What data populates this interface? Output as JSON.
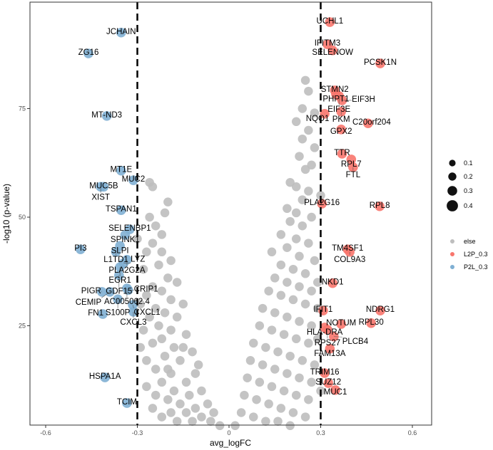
{
  "chart_data": {
    "type": "scatter",
    "xlabel": "avg_logFC",
    "ylabel": "-log10 (p-value)",
    "xlim": [
      -0.64,
      0.66
    ],
    "ylim": [
      0,
      97
    ],
    "x_ticks": [
      -0.6,
      -0.3,
      0,
      0.3,
      0.6
    ],
    "x_tick_labels": [
      "-0.6",
      "-0.3",
      "0",
      "0.3",
      "0.6"
    ],
    "y_ticks": [
      25,
      50,
      75
    ],
    "y_tick_labels": [
      "25",
      "50",
      "75"
    ],
    "threshold_lines_x": [
      -0.3,
      0.3
    ],
    "grid": false,
    "legend_position": "right",
    "size_legend": {
      "values": [
        0.1,
        0.2,
        0.3,
        0.4
      ],
      "labels": [
        "0.1",
        "0.2",
        "0.3",
        "0.4"
      ]
    },
    "color_legend": [
      {
        "name": "else",
        "color": "#bebebe"
      },
      {
        "name": "L2P_0.3",
        "color": "#f8766d"
      },
      {
        "name": "P2L_0.3",
        "color": "#7fafd3"
      }
    ],
    "series": [
      {
        "name": "else",
        "color": "#bebebe",
        "size": 0.25,
        "points": [
          [
            -0.26,
            58
          ],
          [
            -0.25,
            57
          ],
          [
            -0.2,
            53.5
          ],
          [
            -0.21,
            51
          ],
          [
            -0.26,
            50
          ],
          [
            -0.24,
            48
          ],
          [
            -0.22,
            46
          ],
          [
            -0.25,
            44
          ],
          [
            -0.27,
            42
          ],
          [
            -0.22,
            42
          ],
          [
            -0.19,
            40
          ],
          [
            -0.23,
            39
          ],
          [
            -0.28,
            38
          ],
          [
            -0.2,
            36
          ],
          [
            -0.17,
            35
          ],
          [
            -0.25,
            34
          ],
          [
            -0.22,
            33
          ],
          [
            -0.27,
            32
          ],
          [
            -0.19,
            31
          ],
          [
            -0.15,
            30
          ],
          [
            -0.24,
            29
          ],
          [
            -0.21,
            28
          ],
          [
            -0.26,
            27
          ],
          [
            -0.17,
            27
          ],
          [
            -0.23,
            25
          ],
          [
            -0.19,
            24
          ],
          [
            -0.28,
            24
          ],
          [
            -0.14,
            23
          ],
          [
            -0.22,
            22
          ],
          [
            -0.25,
            21
          ],
          [
            -0.18,
            20
          ],
          [
            -0.12,
            19
          ],
          [
            -0.21,
            18
          ],
          [
            -0.27,
            17
          ],
          [
            -0.16,
            17
          ],
          [
            -0.24,
            15
          ],
          [
            -0.19,
            14
          ],
          [
            -0.11,
            14
          ],
          [
            -0.22,
            12
          ],
          [
            -0.14,
            12
          ],
          [
            -0.27,
            11
          ],
          [
            -0.18,
            10
          ],
          [
            -0.09,
            10
          ],
          [
            -0.24,
            9
          ],
          [
            -0.13,
            9
          ],
          [
            -0.2,
            8
          ],
          [
            -0.16,
            7
          ],
          [
            -0.07,
            7
          ],
          [
            -0.25,
            6
          ],
          [
            -0.11,
            6
          ],
          [
            -0.19,
            5
          ],
          [
            -0.14,
            5
          ],
          [
            -0.05,
            5
          ],
          [
            -0.22,
            4
          ],
          [
            -0.09,
            4
          ],
          [
            -0.17,
            3
          ],
          [
            -0.12,
            3
          ],
          [
            -0.06,
            3
          ],
          [
            -0.03,
            2
          ],
          [
            -0.29,
            20
          ],
          [
            -0.29,
            30
          ],
          [
            -0.3,
            45
          ],
          [
            -0.2,
            15
          ],
          [
            -0.15,
            20
          ],
          [
            -0.1,
            16
          ],
          [
            0.25,
            81.5
          ],
          [
            0.26,
            79
          ],
          [
            0.24,
            75
          ],
          [
            0.28,
            74
          ],
          [
            0.22,
            72
          ],
          [
            0.26,
            70
          ],
          [
            0.24,
            68
          ],
          [
            0.28,
            66
          ],
          [
            0.23,
            64
          ],
          [
            0.27,
            62
          ],
          [
            0.25,
            61
          ],
          [
            0.2,
            58
          ],
          [
            0.22,
            57
          ],
          [
            0.26,
            56
          ],
          [
            0.24,
            54
          ],
          [
            0.19,
            52
          ],
          [
            0.22,
            51
          ],
          [
            0.27,
            50
          ],
          [
            0.2,
            49
          ],
          [
            0.24,
            48
          ],
          [
            0.17,
            46
          ],
          [
            0.22,
            45
          ],
          [
            0.26,
            44
          ],
          [
            0.19,
            43
          ],
          [
            0.14,
            42
          ],
          [
            0.23,
            41
          ],
          [
            0.28,
            40
          ],
          [
            0.17,
            39
          ],
          [
            0.21,
            38
          ],
          [
            0.25,
            37
          ],
          [
            0.15,
            36
          ],
          [
            0.19,
            35
          ],
          [
            0.23,
            34
          ],
          [
            0.27,
            33
          ],
          [
            0.13,
            33
          ],
          [
            0.17,
            32
          ],
          [
            0.21,
            31
          ],
          [
            0.25,
            30
          ],
          [
            0.29,
            29
          ],
          [
            0.11,
            29
          ],
          [
            0.15,
            28
          ],
          [
            0.19,
            27
          ],
          [
            0.23,
            26
          ],
          [
            0.27,
            25
          ],
          [
            0.1,
            25
          ],
          [
            0.14,
            24
          ],
          [
            0.18,
            23
          ],
          [
            0.22,
            22
          ],
          [
            0.26,
            21
          ],
          [
            0.08,
            21
          ],
          [
            0.12,
            20
          ],
          [
            0.16,
            19
          ],
          [
            0.2,
            18
          ],
          [
            0.24,
            17
          ],
          [
            0.28,
            16
          ],
          [
            0.07,
            17
          ],
          [
            0.11,
            16
          ],
          [
            0.15,
            15
          ],
          [
            0.19,
            14
          ],
          [
            0.23,
            13
          ],
          [
            0.27,
            12
          ],
          [
            0.06,
            13
          ],
          [
            0.1,
            12
          ],
          [
            0.14,
            11
          ],
          [
            0.18,
            10
          ],
          [
            0.22,
            9
          ],
          [
            0.26,
            8
          ],
          [
            0.05,
            9
          ],
          [
            0.09,
            8
          ],
          [
            0.13,
            7
          ],
          [
            0.17,
            6
          ],
          [
            0.21,
            5
          ],
          [
            0.25,
            4
          ],
          [
            0.04,
            5
          ],
          [
            0.08,
            4
          ],
          [
            0.12,
            3
          ],
          [
            0.16,
            3
          ],
          [
            0.2,
            2
          ],
          [
            0.02,
            2
          ],
          [
            0.29,
            35
          ],
          [
            0.3,
            55
          ],
          [
            0.29,
            22
          ],
          [
            0.3,
            10
          ]
        ]
      },
      {
        "name": "P2L_0.3",
        "color": "#7fafd3",
        "size": 0.3,
        "points": [
          {
            "gene": "JCHAIN",
            "x": -0.353,
            "y": 92.5
          },
          {
            "gene": "ZG16",
            "x": -0.46,
            "y": 87.7
          },
          {
            "gene": "MT-ND3",
            "x": -0.4,
            "y": 73.3
          },
          {
            "gene": "MT1E",
            "x": -0.353,
            "y": 60.7
          },
          {
            "gene": "MUC2",
            "x": -0.313,
            "y": 58.5
          },
          {
            "gene": "MUC5B",
            "x": -0.41,
            "y": 57.0
          },
          {
            "gene": "XIST",
            "x": -0.42,
            "y": 57.0
          },
          {
            "gene": "TSPAN1",
            "x": -0.353,
            "y": 51.6
          },
          {
            "gene": "SELENBP1",
            "x": -0.325,
            "y": 47.2
          },
          {
            "gene": "SPINK1",
            "x": -0.34,
            "y": 45.9
          },
          {
            "gene": "PI3",
            "x": -0.486,
            "y": 42.6
          },
          {
            "gene": "SLPI",
            "x": -0.357,
            "y": 43.4
          },
          {
            "gene": "L1TD1",
            "x": -0.37,
            "y": 42.0
          },
          {
            "gene": "PLA2G2A",
            "x": -0.334,
            "y": 40.2
          },
          {
            "gene": "LYZ",
            "x": -0.345,
            "y": 39.4
          },
          {
            "gene": "EGR1",
            "x": -0.357,
            "y": 38.5
          },
          {
            "gene": "GDF15",
            "x": -0.36,
            "y": 36.6
          },
          {
            "gene": "AC005062.4",
            "x": -0.334,
            "y": 33.6
          },
          {
            "gene": "CRIP1",
            "x": -0.33,
            "y": 33.2
          },
          {
            "gene": "PIGR",
            "x": -0.416,
            "y": 32.8
          },
          {
            "gene": "CEMIP",
            "x": -0.39,
            "y": 32.8
          },
          {
            "gene": "S100P",
            "x": -0.364,
            "y": 31.1
          },
          {
            "gene": "CXCL1",
            "x": -0.315,
            "y": 29.8
          },
          {
            "gene": "CXCL3",
            "x": -0.313,
            "y": 28.2
          },
          {
            "gene": "FN1",
            "x": -0.413,
            "y": 27.7
          },
          {
            "gene": "HSPA1A",
            "x": -0.406,
            "y": 13.1
          },
          {
            "gene": "TCIM",
            "x": -0.334,
            "y": 7.2
          }
        ]
      },
      {
        "name": "L2P_0.3",
        "color": "#f8766d",
        "size": 0.3,
        "points": [
          {
            "gene": "UCHL1",
            "x": 0.33,
            "y": 94.9
          },
          {
            "gene": "IFITM3",
            "x": 0.322,
            "y": 89.8
          },
          {
            "gene": "SELENOW",
            "x": 0.339,
            "y": 88.4
          },
          {
            "gene": "PCSK1N",
            "x": 0.495,
            "y": 85.4
          },
          {
            "gene": "STMN2",
            "x": 0.346,
            "y": 79.2
          },
          {
            "gene": "PHPT1",
            "x": 0.35,
            "y": 78.3
          },
          {
            "gene": "EIF3E",
            "x": 0.36,
            "y": 77.9
          },
          {
            "gene": "EIF3H",
            "x": 0.37,
            "y": 76.9
          },
          {
            "gene": "PKM",
            "x": 0.367,
            "y": 74.3
          },
          {
            "gene": "NQO1",
            "x": 0.313,
            "y": 73.8
          },
          {
            "gene": "C20orf204",
            "x": 0.455,
            "y": 71.6
          },
          {
            "gene": "GPX2",
            "x": 0.367,
            "y": 70.2
          },
          {
            "gene": "TTR",
            "x": 0.37,
            "y": 64.6
          },
          {
            "gene": "RPL7",
            "x": 0.4,
            "y": 63.3
          },
          {
            "gene": "FTL",
            "x": 0.406,
            "y": 61.5
          },
          {
            "gene": "PLA2G16",
            "x": 0.304,
            "y": 53.1
          },
          {
            "gene": "RPL8",
            "x": 0.493,
            "y": 52.5
          },
          {
            "gene": "TM4SF1",
            "x": 0.388,
            "y": 42.6
          },
          {
            "gene": "COL9A3",
            "x": 0.395,
            "y": 42.0
          },
          {
            "gene": "NKD1",
            "x": 0.339,
            "y": 34.8
          },
          {
            "gene": "IFIT1",
            "x": 0.308,
            "y": 28.5
          },
          {
            "gene": "NDRG1",
            "x": 0.495,
            "y": 28.5
          },
          {
            "gene": "RPL30",
            "x": 0.465,
            "y": 25.6
          },
          {
            "gene": "NOTUM",
            "x": 0.367,
            "y": 25.4
          },
          {
            "gene": "HLA-DRA",
            "x": 0.313,
            "y": 24.6
          },
          {
            "gene": "RPS27",
            "x": 0.322,
            "y": 24.1
          },
          {
            "gene": "PLCB4",
            "x": 0.343,
            "y": 22.5
          },
          {
            "gene": "FAM13A",
            "x": 0.33,
            "y": 19.7
          },
          {
            "gene": "TRIM16",
            "x": 0.313,
            "y": 14.1
          },
          {
            "gene": "SUZ12",
            "x": 0.325,
            "y": 11.8
          },
          {
            "gene": "MUC1",
            "x": 0.348,
            "y": 10.2
          }
        ]
      }
    ]
  }
}
